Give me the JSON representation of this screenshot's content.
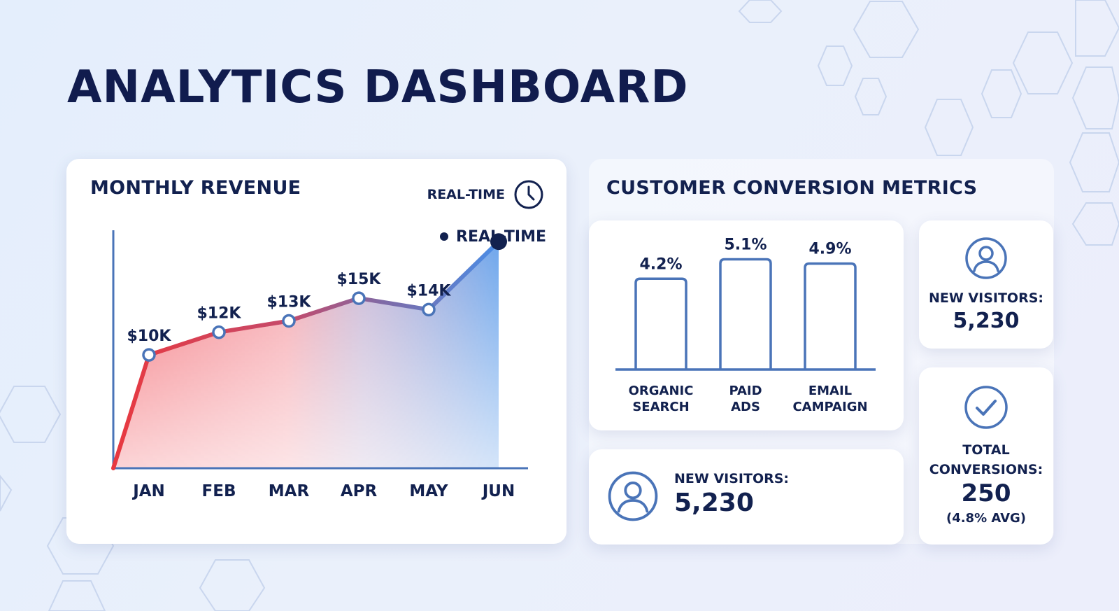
{
  "page": {
    "title": "ANALYTICS DASHBOARD",
    "colors": {
      "navy": "#12214f",
      "chart_blue": "#4a74b8",
      "line_red": "#e8383f",
      "line_purple": "#7f6aa6",
      "line_blue": "#4a8de6"
    }
  },
  "revenue": {
    "title": "MONTHLY REVENUE",
    "realtime_label": "REAL-TIME",
    "realtime_icon": "clock-icon",
    "legend_label": "REAL-TIME"
  },
  "conversion": {
    "title": "CUSTOMER CONVERSION METRICS",
    "new_visitors_small": {
      "icon": "user-icon",
      "label": "NEW VISITORS:",
      "value": "5,230"
    },
    "new_visitors_wide": {
      "icon": "user-icon",
      "label": "NEW VISITORS:",
      "value": "5,230"
    },
    "total_conversions": {
      "icon": "check-circle-icon",
      "label_line1": "TOTAL",
      "label_line2": "CONVERSIONS:",
      "value": "250",
      "sub": "(4.8% AVG)"
    }
  },
  "chart_data": [
    {
      "type": "area",
      "title": "MONTHLY REVENUE",
      "categories": [
        "JAN",
        "FEB",
        "MAR",
        "APR",
        "MAY",
        "JUN"
      ],
      "values": [
        10,
        12,
        13,
        15,
        14,
        20
      ],
      "data_labels": [
        "$10K",
        "$12K",
        "$13K",
        "$15K",
        "$14K",
        ""
      ],
      "ylim": [
        0,
        21
      ],
      "grid": false,
      "legend": "top-right"
    },
    {
      "type": "bar",
      "categories": [
        [
          "ORGANIC",
          "SEARCH"
        ],
        [
          "PAID",
          "ADS"
        ],
        [
          "EMAIL",
          "CAMPAIGN"
        ]
      ],
      "values": [
        4.2,
        5.1,
        4.9
      ],
      "data_labels": [
        "4.2%",
        "5.1%",
        "4.9%"
      ],
      "ylim": [
        0,
        5.6
      ],
      "grid": false
    }
  ]
}
